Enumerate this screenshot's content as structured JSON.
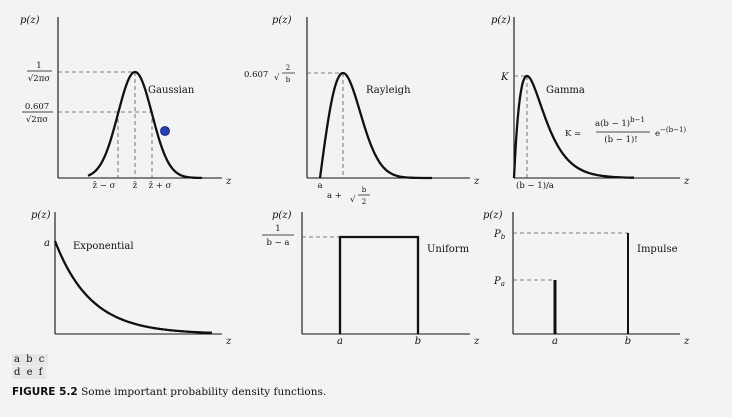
{
  "panels": {
    "gaussian": {
      "ylabel": "p(z)",
      "xaxis": "z",
      "name": "Gaussian",
      "peak_num": "1",
      "peak_den": "√2πσ",
      "mid_num": "0.607",
      "mid_den": "√2πσ",
      "tick_left": "z̄ − σ",
      "tick_center": "z̄",
      "tick_right": "z̄ + σ"
    },
    "rayleigh": {
      "ylabel": "p(z)",
      "xaxis": "z",
      "name": "Rayleigh",
      "peak_coef": "0.607",
      "peak_num": "2",
      "peak_den": "b",
      "tick_a": "a",
      "tick_mode_prefix": "a +",
      "tick_mode_num": "b",
      "tick_mode_den": "2"
    },
    "gamma": {
      "ylabel": "p(z)",
      "xaxis": "z",
      "name": "Gamma",
      "peak_label": "K",
      "formula_lhs": "K =",
      "formula_num": "a(b − 1)",
      "formula_num_exp": "b−1",
      "formula_den": "(b − 1)!",
      "formula_exp_base": "e",
      "formula_exp": "−(b−1)",
      "tick_mode": "(b − 1)/a"
    },
    "exponential": {
      "ylabel": "p(z)",
      "xaxis": "z",
      "name": "Exponential",
      "peak_label": "a"
    },
    "uniform": {
      "ylabel": "p(z)",
      "xaxis": "z",
      "name": "Uniform",
      "height_num": "1",
      "height_den": "b − a",
      "tick_a": "a",
      "tick_b": "b"
    },
    "impulse": {
      "ylabel": "p(z)",
      "xaxis": "z",
      "name": "Impulse",
      "pb_base": "P",
      "pb_sub": "b",
      "pa_base": "P",
      "pa_sub": "a",
      "tick_a": "a",
      "tick_b": "b"
    }
  },
  "subfigure_labels": {
    "row1": "a b c",
    "row2": "d e f"
  },
  "caption": {
    "figure": "FIGURE 5.2",
    "text": "Some important probability density functions."
  },
  "colors": {
    "marker": "#2a3fb0",
    "background": "#f3f3f3"
  }
}
